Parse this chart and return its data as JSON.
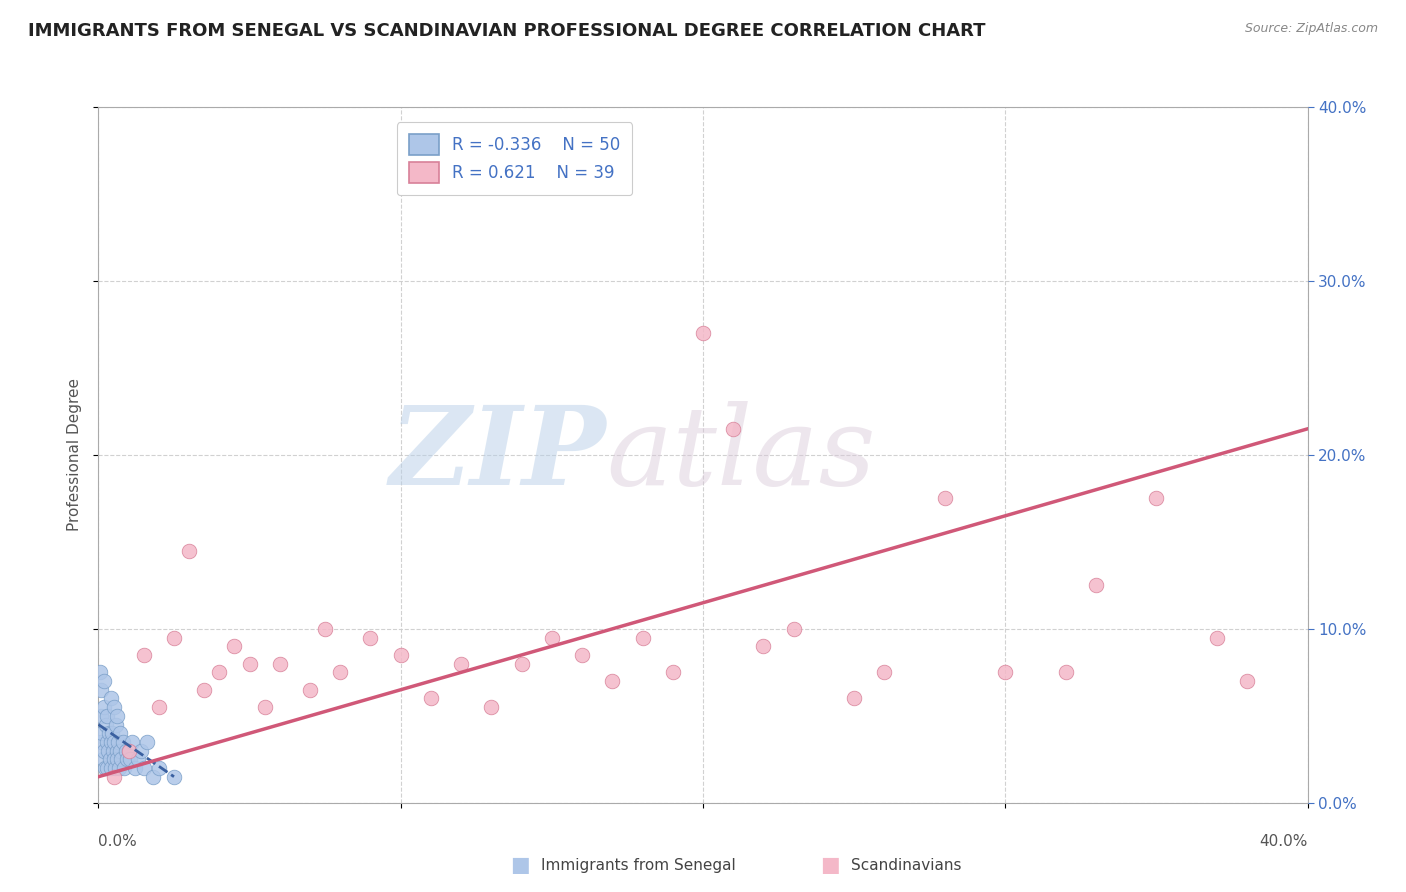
{
  "title": "IMMIGRANTS FROM SENEGAL VS SCANDINAVIAN PROFESSIONAL DEGREE CORRELATION CHART",
  "source_text": "Source: ZipAtlas.com",
  "ylabel": "Professional Degree",
  "xlim": [
    0.0,
    40.0
  ],
  "ylim": [
    0.0,
    40.0
  ],
  "yticks": [
    0.0,
    10.0,
    20.0,
    30.0,
    40.0
  ],
  "xticks": [
    0.0,
    10.0,
    20.0,
    30.0,
    40.0
  ],
  "legend_r_senegal": "-0.336",
  "legend_n_senegal": "50",
  "legend_r_scandinavian": " 0.621",
  "legend_n_scandinavian": "39",
  "watermark_zip": "ZIP",
  "watermark_atlas": "atlas",
  "color_senegal": "#aec6e8",
  "color_scandinavian": "#f4b8c8",
  "color_senegal_line": "#3a60a0",
  "color_scandinavian_line": "#d05878",
  "background_color": "#ffffff",
  "senegal_x": [
    0.05,
    0.08,
    0.1,
    0.1,
    0.12,
    0.15,
    0.18,
    0.2,
    0.2,
    0.22,
    0.25,
    0.28,
    0.3,
    0.3,
    0.32,
    0.35,
    0.38,
    0.4,
    0.4,
    0.42,
    0.45,
    0.48,
    0.5,
    0.5,
    0.52,
    0.55,
    0.58,
    0.6,
    0.6,
    0.62,
    0.65,
    0.68,
    0.7,
    0.72,
    0.75,
    0.8,
    0.85,
    0.9,
    0.95,
    1.0,
    1.05,
    1.1,
    1.2,
    1.3,
    1.4,
    1.5,
    1.6,
    1.8,
    2.0,
    2.5
  ],
  "senegal_y": [
    7.5,
    5.0,
    3.5,
    6.5,
    4.0,
    2.5,
    5.5,
    3.0,
    7.0,
    2.0,
    4.5,
    3.5,
    2.0,
    5.0,
    3.0,
    4.0,
    2.5,
    6.0,
    3.5,
    2.0,
    4.0,
    3.0,
    2.5,
    5.5,
    3.5,
    2.0,
    4.5,
    3.0,
    5.0,
    2.5,
    3.5,
    2.0,
    4.0,
    3.0,
    2.5,
    3.5,
    2.0,
    3.0,
    2.5,
    3.0,
    2.5,
    3.5,
    2.0,
    2.5,
    3.0,
    2.0,
    3.5,
    1.5,
    2.0,
    1.5
  ],
  "scandinavian_x": [
    0.5,
    1.0,
    1.5,
    2.0,
    2.5,
    3.0,
    3.5,
    4.0,
    4.5,
    5.0,
    5.5,
    6.0,
    7.0,
    7.5,
    8.0,
    9.0,
    10.0,
    11.0,
    12.0,
    13.0,
    14.0,
    15.0,
    16.0,
    17.0,
    18.0,
    19.0,
    20.0,
    21.0,
    22.0,
    23.0,
    25.0,
    26.0,
    28.0,
    30.0,
    32.0,
    33.0,
    35.0,
    37.0,
    38.0
  ],
  "scandinavian_y": [
    1.5,
    3.0,
    8.5,
    5.5,
    9.5,
    14.5,
    6.5,
    7.5,
    9.0,
    8.0,
    5.5,
    8.0,
    6.5,
    10.0,
    7.5,
    9.5,
    8.5,
    6.0,
    8.0,
    5.5,
    8.0,
    9.5,
    8.5,
    7.0,
    9.5,
    7.5,
    27.0,
    21.5,
    9.0,
    10.0,
    6.0,
    7.5,
    17.5,
    7.5,
    7.5,
    12.5,
    17.5,
    9.5,
    7.0
  ],
  "senegal_trend_x": [
    0.0,
    2.5
  ],
  "senegal_trend_y": [
    4.5,
    1.5
  ],
  "scandinavian_trend_x": [
    0.0,
    40.0
  ],
  "scandinavian_trend_y": [
    1.5,
    21.5
  ]
}
